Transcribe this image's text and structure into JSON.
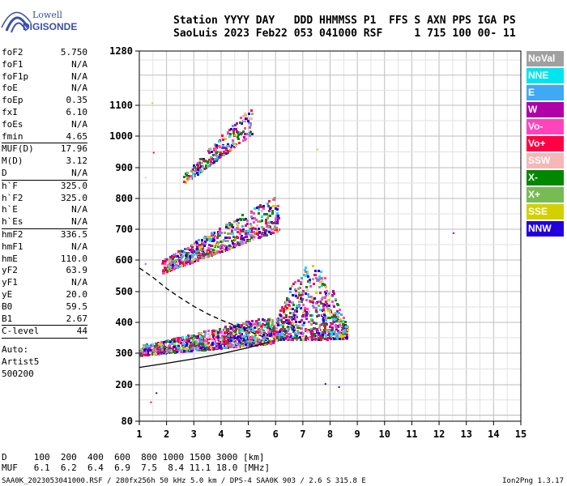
{
  "logo": {
    "line1": "Lowell",
    "line2": "DIGISONDE"
  },
  "header": {
    "line1": "Station YYYY DAY   DDD HHMMSS P1  FFS S AXN PPS IGA PS",
    "line2": "SaoLuis 2023 Feb22 053 041000 RSF     1 715 100 00- 11"
  },
  "params": [
    {
      "label": "foF2",
      "value": "5.750"
    },
    {
      "label": "foF1",
      "value": "N/A"
    },
    {
      "label": "foF1p",
      "value": "N/A"
    },
    {
      "label": "foE",
      "value": "N/A"
    },
    {
      "label": "foEp",
      "value": "0.35"
    },
    {
      "label": "fxI",
      "value": "6.10"
    },
    {
      "label": "foEs",
      "value": "N/A"
    },
    {
      "label": "fmin",
      "value": "4.65"
    },
    {
      "label": "MUF(D)",
      "value": "17.96"
    },
    {
      "label": "M(D)",
      "value": "3.12"
    },
    {
      "label": "D",
      "value": "N/A"
    },
    {
      "label": "h`F",
      "value": "325.0"
    },
    {
      "label": "h`F2",
      "value": "325.0"
    },
    {
      "label": "h`E",
      "value": "N/A"
    },
    {
      "label": "h`Es",
      "value": "N/A"
    },
    {
      "label": "hmF2",
      "value": "336.5"
    },
    {
      "label": "hmF1",
      "value": "N/A"
    },
    {
      "label": "hmE",
      "value": "110.0"
    },
    {
      "label": "yF2",
      "value": "63.9"
    },
    {
      "label": "yF1",
      "value": "N/A"
    },
    {
      "label": "yE",
      "value": "20.0"
    },
    {
      "label": "B0",
      "value": "59.5"
    },
    {
      "label": "B1",
      "value": "2.67"
    },
    {
      "label": "C-level",
      "value": "44"
    }
  ],
  "auto": [
    "Auto:",
    "Artist5",
    "500200"
  ],
  "legend": [
    {
      "label": "NoVal",
      "color": "#a0a0a0"
    },
    {
      "label": "NNE",
      "color": "#00e5ee"
    },
    {
      "label": "E",
      "color": "#3fa9f5"
    },
    {
      "label": "W",
      "color": "#b000a8"
    },
    {
      "label": "Vo-",
      "color": "#ff44bb"
    },
    {
      "label": "Vo+",
      "color": "#ff0044"
    },
    {
      "label": "SSW",
      "color": "#f5b7b7"
    },
    {
      "label": "X-",
      "color": "#008800"
    },
    {
      "label": "X+",
      "color": "#77bb55"
    },
    {
      "label": "SSE",
      "color": "#d4d000"
    },
    {
      "label": "NNW",
      "color": "#2200dd"
    }
  ],
  "footer": {
    "d_line": "D     100  200  400  600  800 1000 1500 3000 [km]",
    "muf_line": "MUF   6.1  6.2  6.4  6.9  7.5  8.4 11.1 18.0 [MHz]",
    "bottom": "SAA0K_2023053041000.RSF / 280fx256h 50 kHz 5.0 km / DPS-4 SAA0K 903 / 2.6 S 315.8 E",
    "version": "Ion2Png 1.3.17"
  },
  "chart_data": {
    "type": "scatter",
    "xticks": [
      1,
      2,
      3,
      4,
      5,
      6,
      7,
      8,
      9,
      10,
      11,
      12,
      13,
      14,
      15
    ],
    "yticks": [
      80,
      200,
      300,
      400,
      500,
      600,
      700,
      800,
      900,
      1000,
      1100,
      1280
    ],
    "xlim": [
      1,
      15
    ],
    "ylim": [
      80,
      1280
    ],
    "grid": true,
    "trace_clusters": [
      {
        "name": "F-trace-low",
        "x_range": [
          1,
          5.9
        ],
        "y_base_at_start": 295,
        "y_base_at_end": 335,
        "spread": 90
      },
      {
        "name": "F-trace-peak",
        "x_range": [
          5.9,
          8.6
        ],
        "y_base_at_start": 345,
        "y_base_at_end": 350,
        "spread": 140
      },
      {
        "name": "2F-trace",
        "x_range": [
          1.8,
          6.1
        ],
        "y_base_at_start": 560,
        "y_base_at_end": 700,
        "spread": 120
      },
      {
        "name": "3F-trace",
        "x_range": [
          2.6,
          5.1
        ],
        "y_base_at_start": 850,
        "y_base_at_end": 1010,
        "spread": 90
      }
    ],
    "profile_solid": {
      "x": [
        1,
        2,
        3,
        4,
        5,
        5.5,
        5.75
      ],
      "y": [
        255,
        268,
        282,
        298,
        318,
        330,
        336
      ]
    },
    "profile_dashed": {
      "x": [
        1,
        1.5,
        2,
        2.5,
        3,
        3.5,
        4,
        4.5,
        5,
        5.5,
        5.75
      ],
      "y": [
        575,
        545,
        510,
        480,
        452,
        428,
        408,
        390,
        372,
        355,
        345
      ]
    }
  }
}
